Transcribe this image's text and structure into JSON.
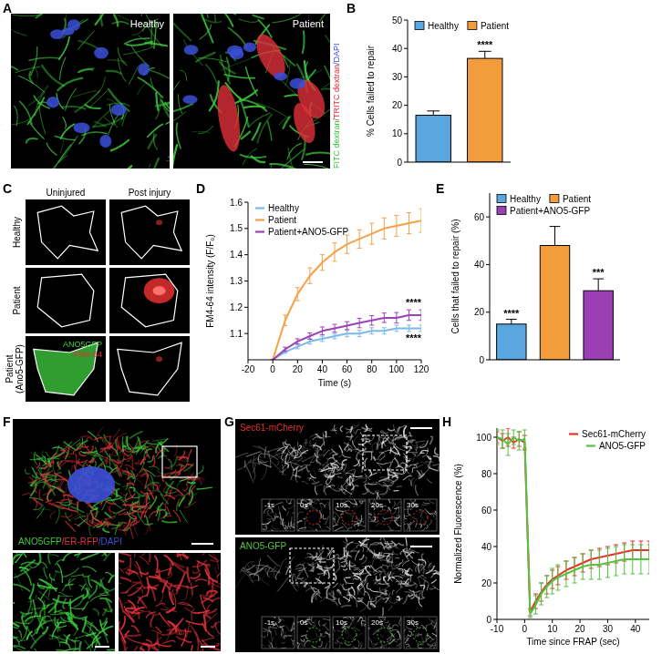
{
  "chart_data": [
    {
      "type": "bar",
      "title": "B",
      "ylabel": "% Cells failed to repair",
      "categories": [
        "Healthy",
        "Patient"
      ],
      "values": [
        16.5,
        36.5
      ],
      "errors": [
        1.5,
        2.5
      ],
      "colors": [
        "#5aa7e0",
        "#f39c3c"
      ],
      "significance": [
        null,
        "****"
      ],
      "ylim": [
        0,
        50
      ],
      "yticks": [
        0,
        10,
        20,
        30,
        40,
        50
      ],
      "legend": "upper left",
      "tick_labels": "y"
    },
    {
      "type": "line",
      "title": "D",
      "xlabel": "Time (s)",
      "ylabel": "FM4-64 intensity (F/F₀)",
      "x": [
        0,
        10,
        20,
        30,
        40,
        50,
        60,
        70,
        80,
        90,
        100,
        110,
        120
      ],
      "series": [
        {
          "name": "Healthy",
          "color": "#7db9e8",
          "values": [
            1.0,
            1.03,
            1.05,
            1.07,
            1.08,
            1.09,
            1.1,
            1.1,
            1.11,
            1.11,
            1.12,
            1.12,
            1.12
          ],
          "errors": [
            0,
            0.005,
            0.008,
            0.01,
            0.01,
            0.01,
            0.012,
            0.012,
            0.012,
            0.012,
            0.012,
            0.012,
            0.012
          ],
          "significance": "****"
        },
        {
          "name": "Patient",
          "color": "#f5a144",
          "values": [
            1.0,
            1.15,
            1.25,
            1.32,
            1.37,
            1.41,
            1.44,
            1.46,
            1.48,
            1.5,
            1.51,
            1.52,
            1.53
          ],
          "errors": [
            0,
            0.02,
            0.025,
            0.03,
            0.03,
            0.035,
            0.035,
            0.035,
            0.04,
            0.04,
            0.04,
            0.04,
            0.045
          ]
        },
        {
          "name": "Patient+ANO5-GFP",
          "color": "#9c42b8",
          "values": [
            1.0,
            1.04,
            1.07,
            1.09,
            1.11,
            1.12,
            1.13,
            1.14,
            1.15,
            1.16,
            1.16,
            1.17,
            1.17
          ],
          "errors": [
            0,
            0.008,
            0.01,
            0.012,
            0.015,
            0.015,
            0.015,
            0.018,
            0.018,
            0.018,
            0.02,
            0.02,
            0.02
          ],
          "significance": "****"
        }
      ],
      "xlim": [
        -20,
        120
      ],
      "xticks": [
        -20,
        0,
        20,
        40,
        60,
        80,
        100,
        120
      ],
      "ylim": [
        1.0,
        1.6
      ],
      "yticks": [
        1.1,
        1.2,
        1.3,
        1.4,
        1.5,
        1.6
      ],
      "legend": "upper left"
    },
    {
      "type": "bar",
      "title": "E",
      "ylabel": "Cells that failed to repair (%)",
      "categories": [
        "Healthy",
        "Patient",
        "Patient+ANO5-GFP"
      ],
      "values": [
        15,
        48,
        29
      ],
      "errors": [
        2,
        8,
        5
      ],
      "colors": [
        "#5aa7e0",
        "#f39c3c",
        "#9b3fb5"
      ],
      "significance": [
        "****",
        null,
        "***"
      ],
      "ylim": [
        0,
        70
      ],
      "yticks": [
        0,
        20,
        40,
        60
      ],
      "legend": "upper left",
      "tick_labels": "y"
    },
    {
      "type": "line",
      "title": "H",
      "xlabel": "Time since FRAP (sec)",
      "ylabel": "Normalized Fluorescence (%)",
      "x": [
        -10,
        -8,
        -6,
        -4,
        -2,
        0,
        2,
        4,
        6,
        8,
        10,
        12,
        15,
        18,
        21,
        24,
        27,
        30,
        33,
        36,
        39,
        42,
        45
      ],
      "series": [
        {
          "name": "Sec61-mCherry",
          "color": "#e8302a",
          "values": [
            100,
            98,
            100,
            97,
            99,
            97,
            4,
            10,
            15,
            19,
            22,
            24,
            27,
            29,
            31,
            33,
            34,
            35,
            36,
            37,
            38,
            38,
            38
          ],
          "errors": [
            3,
            4,
            5,
            3,
            4,
            4,
            2,
            4,
            5,
            5,
            5,
            5,
            5,
            5,
            5,
            5,
            5,
            5,
            5,
            5,
            5,
            5,
            5
          ]
        },
        {
          "name": "ANO5-GFP",
          "color": "#52c441",
          "values": [
            100,
            99,
            96,
            100,
            98,
            99,
            3,
            8,
            14,
            18,
            21,
            23,
            25,
            27,
            29,
            30,
            30,
            31,
            32,
            33,
            33,
            33,
            33
          ],
          "errors": [
            4,
            5,
            6,
            4,
            5,
            5,
            2,
            5,
            6,
            6,
            7,
            7,
            7,
            7,
            7,
            8,
            8,
            8,
            8,
            8,
            8,
            8,
            8
          ]
        }
      ],
      "xlim": [
        -10,
        45
      ],
      "xticks": [
        -10,
        0,
        10,
        20,
        30,
        40
      ],
      "ylim": [
        0,
        105
      ],
      "yticks": [
        0,
        20,
        40,
        60,
        80,
        100
      ],
      "legend": "upper right"
    }
  ],
  "image_panels": {
    "A": {
      "label": "A",
      "captions": [
        "Healthy",
        "Patient"
      ],
      "stain_legend": [
        {
          "text": "FITC dextran",
          "color": "#3cc83c"
        },
        {
          "text": "/TRITC dextran",
          "color": "#e0303a"
        },
        {
          "text": "/DAPI",
          "color": "#3b4fd8"
        }
      ]
    },
    "C": {
      "label": "C",
      "columns": [
        "Uninjured",
        "Post injury"
      ],
      "rows": [
        "Healthy",
        "Patient",
        "Patient (Ano5-GFP)"
      ],
      "overlay": [
        {
          "text": "ANO5GFP",
          "color": "#3fd23f"
        },
        {
          "text": "FM4-64",
          "color": "#e53030"
        }
      ]
    },
    "F": {
      "label": "F",
      "stain_legend": [
        {
          "text": "ANO5GFP",
          "color": "#3cc83c"
        },
        {
          "text": "/ER-RFP",
          "color": "#e0303a"
        },
        {
          "text": "/DAPI",
          "color": "#3b4fd8"
        }
      ]
    },
    "G": {
      "label": "G",
      "captions": [
        {
          "text": "Sec61-mCherry",
          "color": "#e8302a"
        },
        {
          "text": "ANO5-GFP",
          "color": "#52c441"
        }
      ],
      "time_points": [
        "-1s",
        "0s",
        "10s",
        "20s",
        "30s"
      ]
    }
  }
}
